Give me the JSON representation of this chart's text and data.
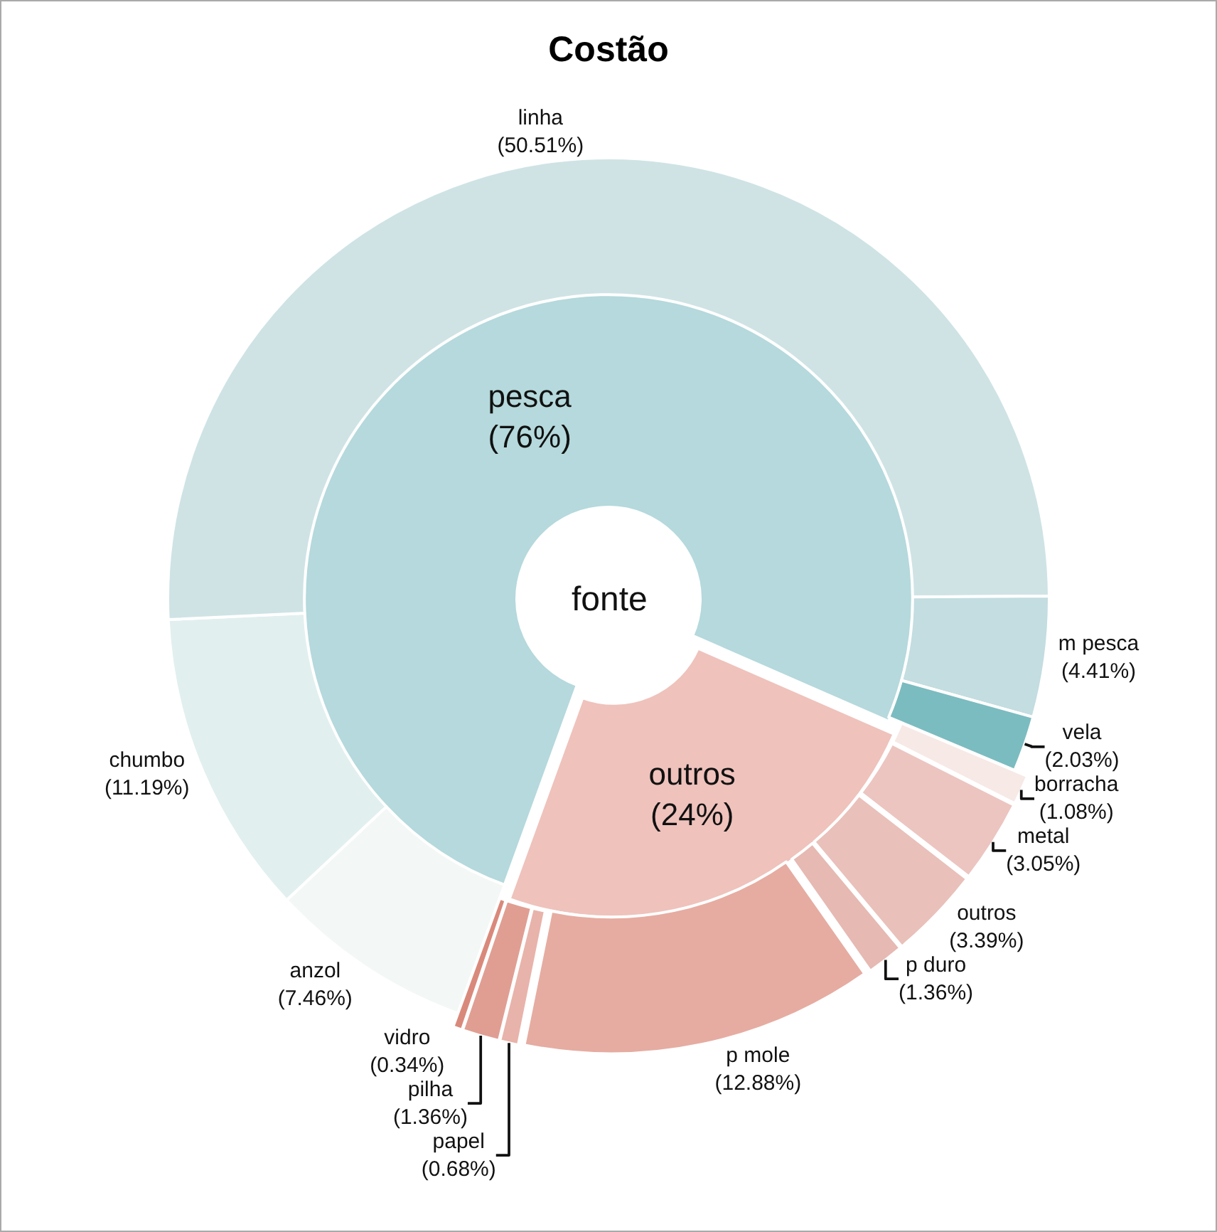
{
  "chart_data": [
    {
      "type": "donut",
      "title": "Costão",
      "annotations": [
        "fonte"
      ],
      "categories": [
        "pesca",
        "outros"
      ],
      "values": [
        76,
        24
      ],
      "value_labels": [
        "(76%)",
        "(24%)"
      ],
      "colors": [
        "#b5d9dc",
        "#efc2bc"
      ],
      "legend": false
    },
    {
      "type": "donut",
      "categories": [
        "anzol",
        "chumbo",
        "linha",
        "m pesca",
        "vela",
        "borracha",
        "metal",
        "outros",
        "p duro",
        "p mole",
        "papel",
        "pilha",
        "vidro"
      ],
      "values": [
        7.46,
        11.19,
        50.51,
        4.41,
        2.03,
        1.08,
        3.05,
        3.39,
        1.36,
        12.88,
        0.68,
        1.36,
        0.34
      ],
      "value_labels": [
        "(7.46%)",
        "(11.19%)",
        "(50.51%)",
        "(4.41%)",
        "(2.03%)",
        "(1.08%)",
        "(3.05%)",
        "(3.39%)",
        "(1.36%)",
        "(12.88%)",
        "(0.68%)",
        "(1.36%)",
        "(0.34%)"
      ],
      "colors": [
        "#f3f7f6",
        "#e2efef",
        "#cfe3e5",
        "#c3dde0",
        "#7bbcc0",
        "#f7e9e6",
        "#ecc5c0",
        "#e9c0ba",
        "#e6b9b2",
        "#e6aca1",
        "#e8b3aa",
        "#e09e92",
        "#d9897b"
      ],
      "legend": false
    }
  ]
}
